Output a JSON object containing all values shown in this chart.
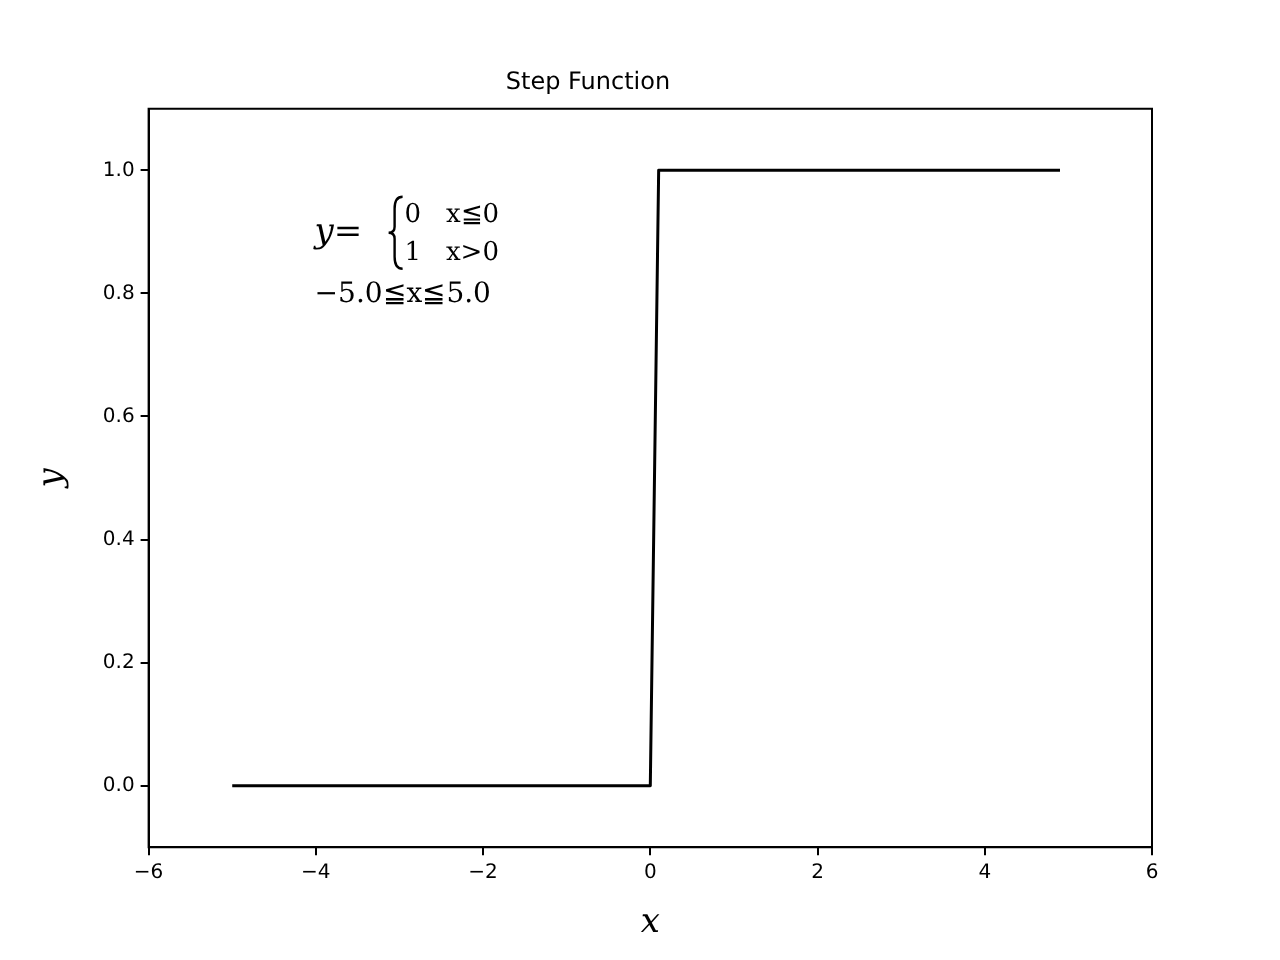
{
  "chart_data": {
    "type": "line",
    "title": "Step Function",
    "xlabel": "x",
    "ylabel": "y",
    "x": [
      -5,
      0,
      0.1,
      4.9
    ],
    "series": [
      {
        "color": "#000000",
        "values": [
          0,
          0,
          1,
          1
        ]
      }
    ],
    "xlim": [
      -6,
      6
    ],
    "xticks": [
      -6,
      -4,
      -2,
      0,
      2,
      4,
      6
    ],
    "ylim": [
      -0.1,
      1.1
    ],
    "yticks": [
      {
        "value": 0,
        "label": "0.0"
      },
      {
        "value": 0.2,
        "label": "0.2"
      },
      {
        "value": 0.4,
        "label": "0.4"
      },
      {
        "value": 0.6,
        "label": "0.6"
      },
      {
        "value": 0.8,
        "label": "0.8"
      },
      {
        "value": 1,
        "label": "1.0"
      }
    ],
    "grid": false,
    "legend": false,
    "marker": "none",
    "line_style": "solid",
    "annotations": [
      "y=",
      "0   x≦0",
      "1   x>0",
      "−5.0≦x≦5.0"
    ]
  }
}
